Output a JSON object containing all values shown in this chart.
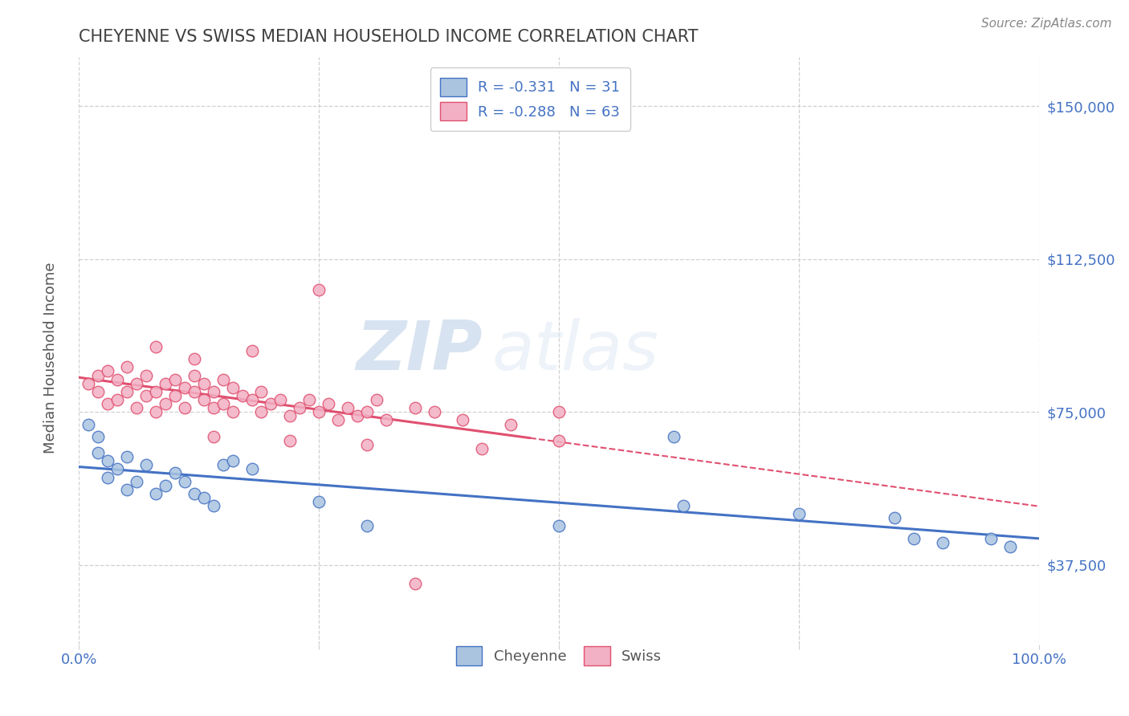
{
  "title": "CHEYENNE VS SWISS MEDIAN HOUSEHOLD INCOME CORRELATION CHART",
  "source": "Source: ZipAtlas.com",
  "ylabel": "Median Household Income",
  "xlim": [
    0,
    1.0
  ],
  "ylim": [
    18000,
    162000
  ],
  "xtick_positions": [
    0.0,
    0.25,
    0.5,
    0.75,
    1.0
  ],
  "xtick_labels": [
    "0.0%",
    "",
    "",
    "",
    "100.0%"
  ],
  "ytick_values": [
    37500,
    75000,
    112500,
    150000
  ],
  "ytick_labels": [
    "$37,500",
    "$75,000",
    "$112,500",
    "$150,000"
  ],
  "background_color": "#ffffff",
  "grid_color": "#d0d0d0",
  "watermark_zip": "ZIP",
  "watermark_atlas": "atlas",
  "legend_labels": [
    "R = -0.331   N = 31",
    "R = -0.288   N = 63"
  ],
  "bottom_legend_labels": [
    "Cheyenne",
    "Swiss"
  ],
  "cheyenne_color": "#aac4e0",
  "swiss_color": "#f2b0c4",
  "cheyenne_line_color": "#4472c4",
  "swiss_line_color": "#e05070",
  "title_color": "#404040",
  "axis_label_color": "#4472c4",
  "tick_color": "#4472c4",
  "cheyenne_x": [
    0.01,
    0.02,
    0.02,
    0.03,
    0.03,
    0.04,
    0.05,
    0.05,
    0.06,
    0.07,
    0.08,
    0.09,
    0.1,
    0.11,
    0.12,
    0.13,
    0.14,
    0.15,
    0.16,
    0.18,
    0.25,
    0.3,
    0.5,
    0.62,
    0.63,
    0.75,
    0.85,
    0.87,
    0.9,
    0.95,
    0.97
  ],
  "cheyenne_y": [
    72000,
    69000,
    65000,
    63000,
    59000,
    61000,
    64000,
    56000,
    58000,
    62000,
    55000,
    57000,
    60000,
    58000,
    55000,
    54000,
    52000,
    62000,
    63000,
    61000,
    53000,
    47000,
    47000,
    69000,
    52000,
    50000,
    49000,
    44000,
    43000,
    44000,
    42000
  ],
  "swiss_x": [
    0.01,
    0.02,
    0.02,
    0.03,
    0.03,
    0.04,
    0.04,
    0.05,
    0.05,
    0.06,
    0.06,
    0.07,
    0.07,
    0.08,
    0.08,
    0.09,
    0.09,
    0.1,
    0.1,
    0.11,
    0.11,
    0.12,
    0.12,
    0.13,
    0.13,
    0.14,
    0.14,
    0.15,
    0.15,
    0.16,
    0.16,
    0.17,
    0.18,
    0.19,
    0.19,
    0.2,
    0.21,
    0.22,
    0.23,
    0.24,
    0.25,
    0.26,
    0.27,
    0.28,
    0.29,
    0.3,
    0.31,
    0.32,
    0.35,
    0.37,
    0.4,
    0.45,
    0.5,
    0.25,
    0.18,
    0.12,
    0.08,
    0.3,
    0.42,
    0.5,
    0.14,
    0.22,
    0.35
  ],
  "swiss_y": [
    82000,
    84000,
    80000,
    85000,
    77000,
    83000,
    78000,
    86000,
    80000,
    82000,
    76000,
    84000,
    79000,
    80000,
    75000,
    82000,
    77000,
    83000,
    79000,
    81000,
    76000,
    80000,
    84000,
    78000,
    82000,
    76000,
    80000,
    83000,
    77000,
    81000,
    75000,
    79000,
    78000,
    75000,
    80000,
    77000,
    78000,
    74000,
    76000,
    78000,
    75000,
    77000,
    73000,
    76000,
    74000,
    75000,
    78000,
    73000,
    76000,
    75000,
    73000,
    72000,
    75000,
    105000,
    90000,
    88000,
    91000,
    67000,
    66000,
    68000,
    69000,
    68000,
    33000
  ]
}
